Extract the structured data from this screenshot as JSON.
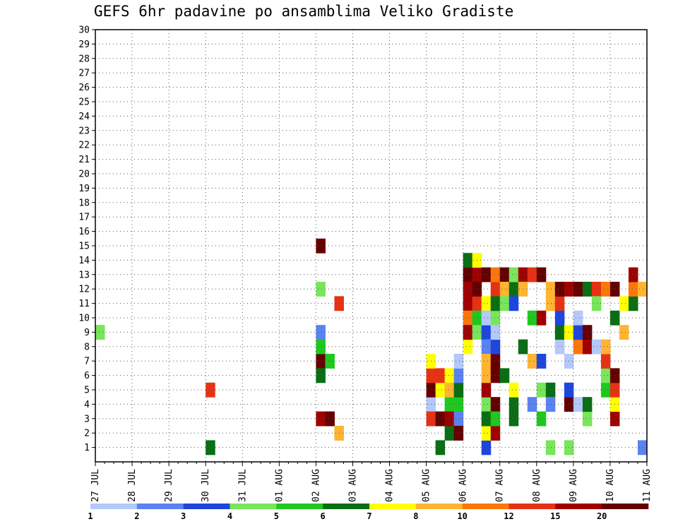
{
  "chart_data": {
    "type": "heatmap",
    "title": "GEFS 6hr padavine po ansamblima Veliko Gradiste",
    "xlabel": "",
    "ylabel": "",
    "x_ticks": [
      "27 JUL",
      "28 JUL",
      "29 JUL",
      "30 JUL",
      "31 JUL",
      "01 AUG",
      "02 AUG",
      "03 AUG",
      "04 AUG",
      "05 AUG",
      "06 AUG",
      "07 AUG",
      "08 AUG",
      "09 AUG",
      "10 AUG",
      "11 AUG"
    ],
    "y_ticks": [
      1,
      2,
      3,
      4,
      5,
      6,
      7,
      8,
      9,
      10,
      11,
      12,
      13,
      14,
      15,
      16,
      17,
      18,
      19,
      20,
      21,
      22,
      23,
      24,
      25,
      26,
      27,
      28,
      29,
      30
    ],
    "x_steps_per_day": 4,
    "x_total_steps": 60,
    "y_range": [
      0,
      30
    ],
    "grid": true,
    "colorbar": {
      "labels": [
        "1",
        "2",
        "3",
        "4",
        "5",
        "6",
        "7",
        "8",
        "10",
        "12",
        "15",
        "20"
      ],
      "colors": [
        "#b4c8fa",
        "#5a82f0",
        "#1e46dc",
        "#78e65a",
        "#1ec81e",
        "#0a6e14",
        "#ffff00",
        "#ffb432",
        "#fa780a",
        "#e63214",
        "#a00000",
        "#640000"
      ]
    },
    "cells": [
      [
        1,
        9,
        7
      ],
      [
        1,
        9,
        4
      ],
      [
        13,
        1,
        6
      ],
      [
        13,
        5,
        10
      ],
      [
        25,
        9,
        2
      ],
      [
        25,
        3,
        11
      ],
      [
        25,
        7,
        12
      ],
      [
        25,
        6,
        6
      ],
      [
        25,
        8,
        5
      ],
      [
        25,
        15,
        12
      ],
      [
        26,
        7,
        5
      ],
      [
        26,
        3,
        12
      ],
      [
        27,
        2,
        8
      ],
      [
        27,
        11,
        10
      ],
      [
        25,
        12,
        4
      ],
      [
        37,
        4,
        1
      ],
      [
        37,
        5,
        12
      ],
      [
        37,
        6,
        10
      ],
      [
        37,
        7,
        7
      ],
      [
        37,
        3,
        10
      ],
      [
        38,
        1,
        6
      ],
      [
        38,
        3,
        12
      ],
      [
        38,
        5,
        7
      ],
      [
        38,
        6,
        10
      ],
      [
        39,
        4,
        5
      ],
      [
        39,
        2,
        6
      ],
      [
        39,
        3,
        11
      ],
      [
        39,
        6,
        7
      ],
      [
        39,
        5,
        8
      ],
      [
        40,
        4,
        5
      ],
      [
        40,
        5,
        6
      ],
      [
        40,
        6,
        2
      ],
      [
        40,
        7,
        1
      ],
      [
        40,
        3,
        2
      ],
      [
        40,
        2,
        12
      ],
      [
        41,
        13,
        12
      ],
      [
        41,
        11,
        11
      ],
      [
        41,
        10,
        9
      ],
      [
        41,
        12,
        11
      ],
      [
        41,
        8,
        7
      ],
      [
        41,
        9,
        11
      ],
      [
        41,
        14,
        6
      ],
      [
        42,
        11,
        10
      ],
      [
        42,
        13,
        11
      ],
      [
        42,
        12,
        12
      ],
      [
        42,
        14,
        7
      ],
      [
        42,
        10,
        5
      ],
      [
        42,
        9,
        4
      ],
      [
        43,
        4,
        4
      ],
      [
        43,
        5,
        11
      ],
      [
        43,
        6,
        8
      ],
      [
        43,
        1,
        3
      ],
      [
        43,
        13,
        12
      ],
      [
        43,
        9,
        3
      ],
      [
        43,
        2,
        7
      ],
      [
        43,
        3,
        6
      ],
      [
        43,
        11,
        7
      ],
      [
        43,
        8,
        2
      ],
      [
        43,
        7,
        8
      ],
      [
        43,
        10,
        1
      ],
      [
        44,
        4,
        12
      ],
      [
        44,
        6,
        12
      ],
      [
        44,
        2,
        11
      ],
      [
        44,
        12,
        10
      ],
      [
        44,
        13,
        9
      ],
      [
        44,
        7,
        12
      ],
      [
        44,
        10,
        4
      ],
      [
        44,
        8,
        3
      ],
      [
        44,
        3,
        5
      ],
      [
        44,
        9,
        1
      ],
      [
        44,
        11,
        6
      ],
      [
        45,
        13,
        12
      ],
      [
        45,
        12,
        8
      ],
      [
        45,
        6,
        6
      ],
      [
        45,
        11,
        4
      ],
      [
        46,
        12,
        6
      ],
      [
        46,
        13,
        4
      ],
      [
        46,
        4,
        6
      ],
      [
        46,
        11,
        3
      ],
      [
        46,
        3,
        6
      ],
      [
        46,
        5,
        7
      ],
      [
        47,
        13,
        11
      ],
      [
        47,
        8,
        6
      ],
      [
        47,
        12,
        8
      ],
      [
        48,
        13,
        10
      ],
      [
        48,
        4,
        2
      ],
      [
        48,
        7,
        8
      ],
      [
        48,
        10,
        5
      ],
      [
        49,
        13,
        12
      ],
      [
        49,
        3,
        5
      ],
      [
        49,
        7,
        3
      ],
      [
        49,
        5,
        4
      ],
      [
        49,
        10,
        11
      ],
      [
        50,
        12,
        8
      ],
      [
        50,
        11,
        8
      ],
      [
        50,
        5,
        6
      ],
      [
        50,
        1,
        4
      ],
      [
        50,
        4,
        2
      ],
      [
        51,
        8,
        1
      ],
      [
        51,
        9,
        6
      ],
      [
        51,
        10,
        3
      ],
      [
        51,
        11,
        10
      ],
      [
        51,
        12,
        12
      ],
      [
        52,
        1,
        4
      ],
      [
        52,
        7,
        1
      ],
      [
        52,
        4,
        12
      ],
      [
        52,
        5,
        3
      ],
      [
        52,
        9,
        7
      ],
      [
        52,
        12,
        11
      ],
      [
        53,
        12,
        12
      ],
      [
        53,
        8,
        9
      ],
      [
        53,
        9,
        3
      ],
      [
        53,
        4,
        1
      ],
      [
        53,
        10,
        1
      ],
      [
        54,
        3,
        4
      ],
      [
        54,
        4,
        6
      ],
      [
        54,
        8,
        11
      ],
      [
        54,
        12,
        6
      ],
      [
        54,
        9,
        12
      ],
      [
        55,
        12,
        10
      ],
      [
        55,
        11,
        4
      ],
      [
        55,
        8,
        1
      ],
      [
        56,
        5,
        5
      ],
      [
        56,
        6,
        4
      ],
      [
        56,
        7,
        10
      ],
      [
        56,
        8,
        8
      ],
      [
        56,
        12,
        9
      ],
      [
        57,
        3,
        11
      ],
      [
        57,
        4,
        7
      ],
      [
        57,
        5,
        10
      ],
      [
        57,
        6,
        12
      ],
      [
        57,
        10,
        6
      ],
      [
        57,
        12,
        12
      ],
      [
        58,
        9,
        8
      ],
      [
        58,
        11,
        7
      ],
      [
        59,
        11,
        6
      ],
      [
        59,
        12,
        9
      ],
      [
        59,
        13,
        11
      ],
      [
        60,
        1,
        2
      ],
      [
        60,
        12,
        8
      ]
    ],
    "cell_rows": "cells are [x_step, ensemble_member, colour_index] triples; colour_index 1-12 refers to colorbar.colors"
  }
}
